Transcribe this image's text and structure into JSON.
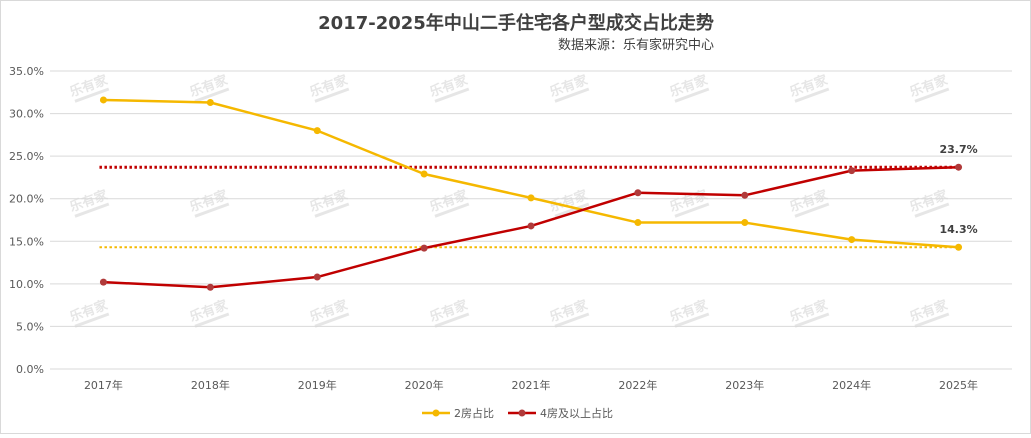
{
  "colors": {
    "series1": "#f5b800",
    "series2": "#c00000",
    "grid": "#d9d9d9",
    "axis_text": "#595959",
    "title": "#404040",
    "watermark": "#e6e6e6"
  },
  "chart_data": {
    "type": "line",
    "title": "2017-2025年中山二手住宅各户型成交占比走势",
    "subtitle": "数据来源：乐有家研究中心",
    "categories": [
      "2017年",
      "2018年",
      "2019年",
      "2020年",
      "2021年",
      "2022年",
      "2023年",
      "2024年",
      "2025年"
    ],
    "series": [
      {
        "name": "2房占比",
        "color": "#f5b800",
        "values": [
          31.6,
          31.3,
          28.0,
          22.9,
          20.1,
          17.2,
          17.2,
          15.2,
          14.3
        ]
      },
      {
        "name": "4房及以上占比",
        "color": "#c00000",
        "values": [
          10.2,
          9.6,
          10.8,
          14.2,
          16.8,
          20.7,
          20.4,
          23.3,
          23.7
        ]
      }
    ],
    "reference_lines": [
      {
        "value": 23.7,
        "color": "#c00000",
        "style": "dotted"
      },
      {
        "value": 14.3,
        "color": "#f5b800",
        "style": "dotted"
      }
    ],
    "data_labels": [
      {
        "series": 1,
        "index": 8,
        "text": "23.7%"
      },
      {
        "series": 0,
        "index": 8,
        "text": "14.3%"
      }
    ],
    "ylim": [
      0,
      35
    ],
    "yticks": [
      "0.0%",
      "5.0%",
      "10.0%",
      "15.0%",
      "20.0%",
      "25.0%",
      "30.0%",
      "35.0%"
    ],
    "grid": true,
    "legend_position": "bottom",
    "watermark_text": "乐有家"
  }
}
